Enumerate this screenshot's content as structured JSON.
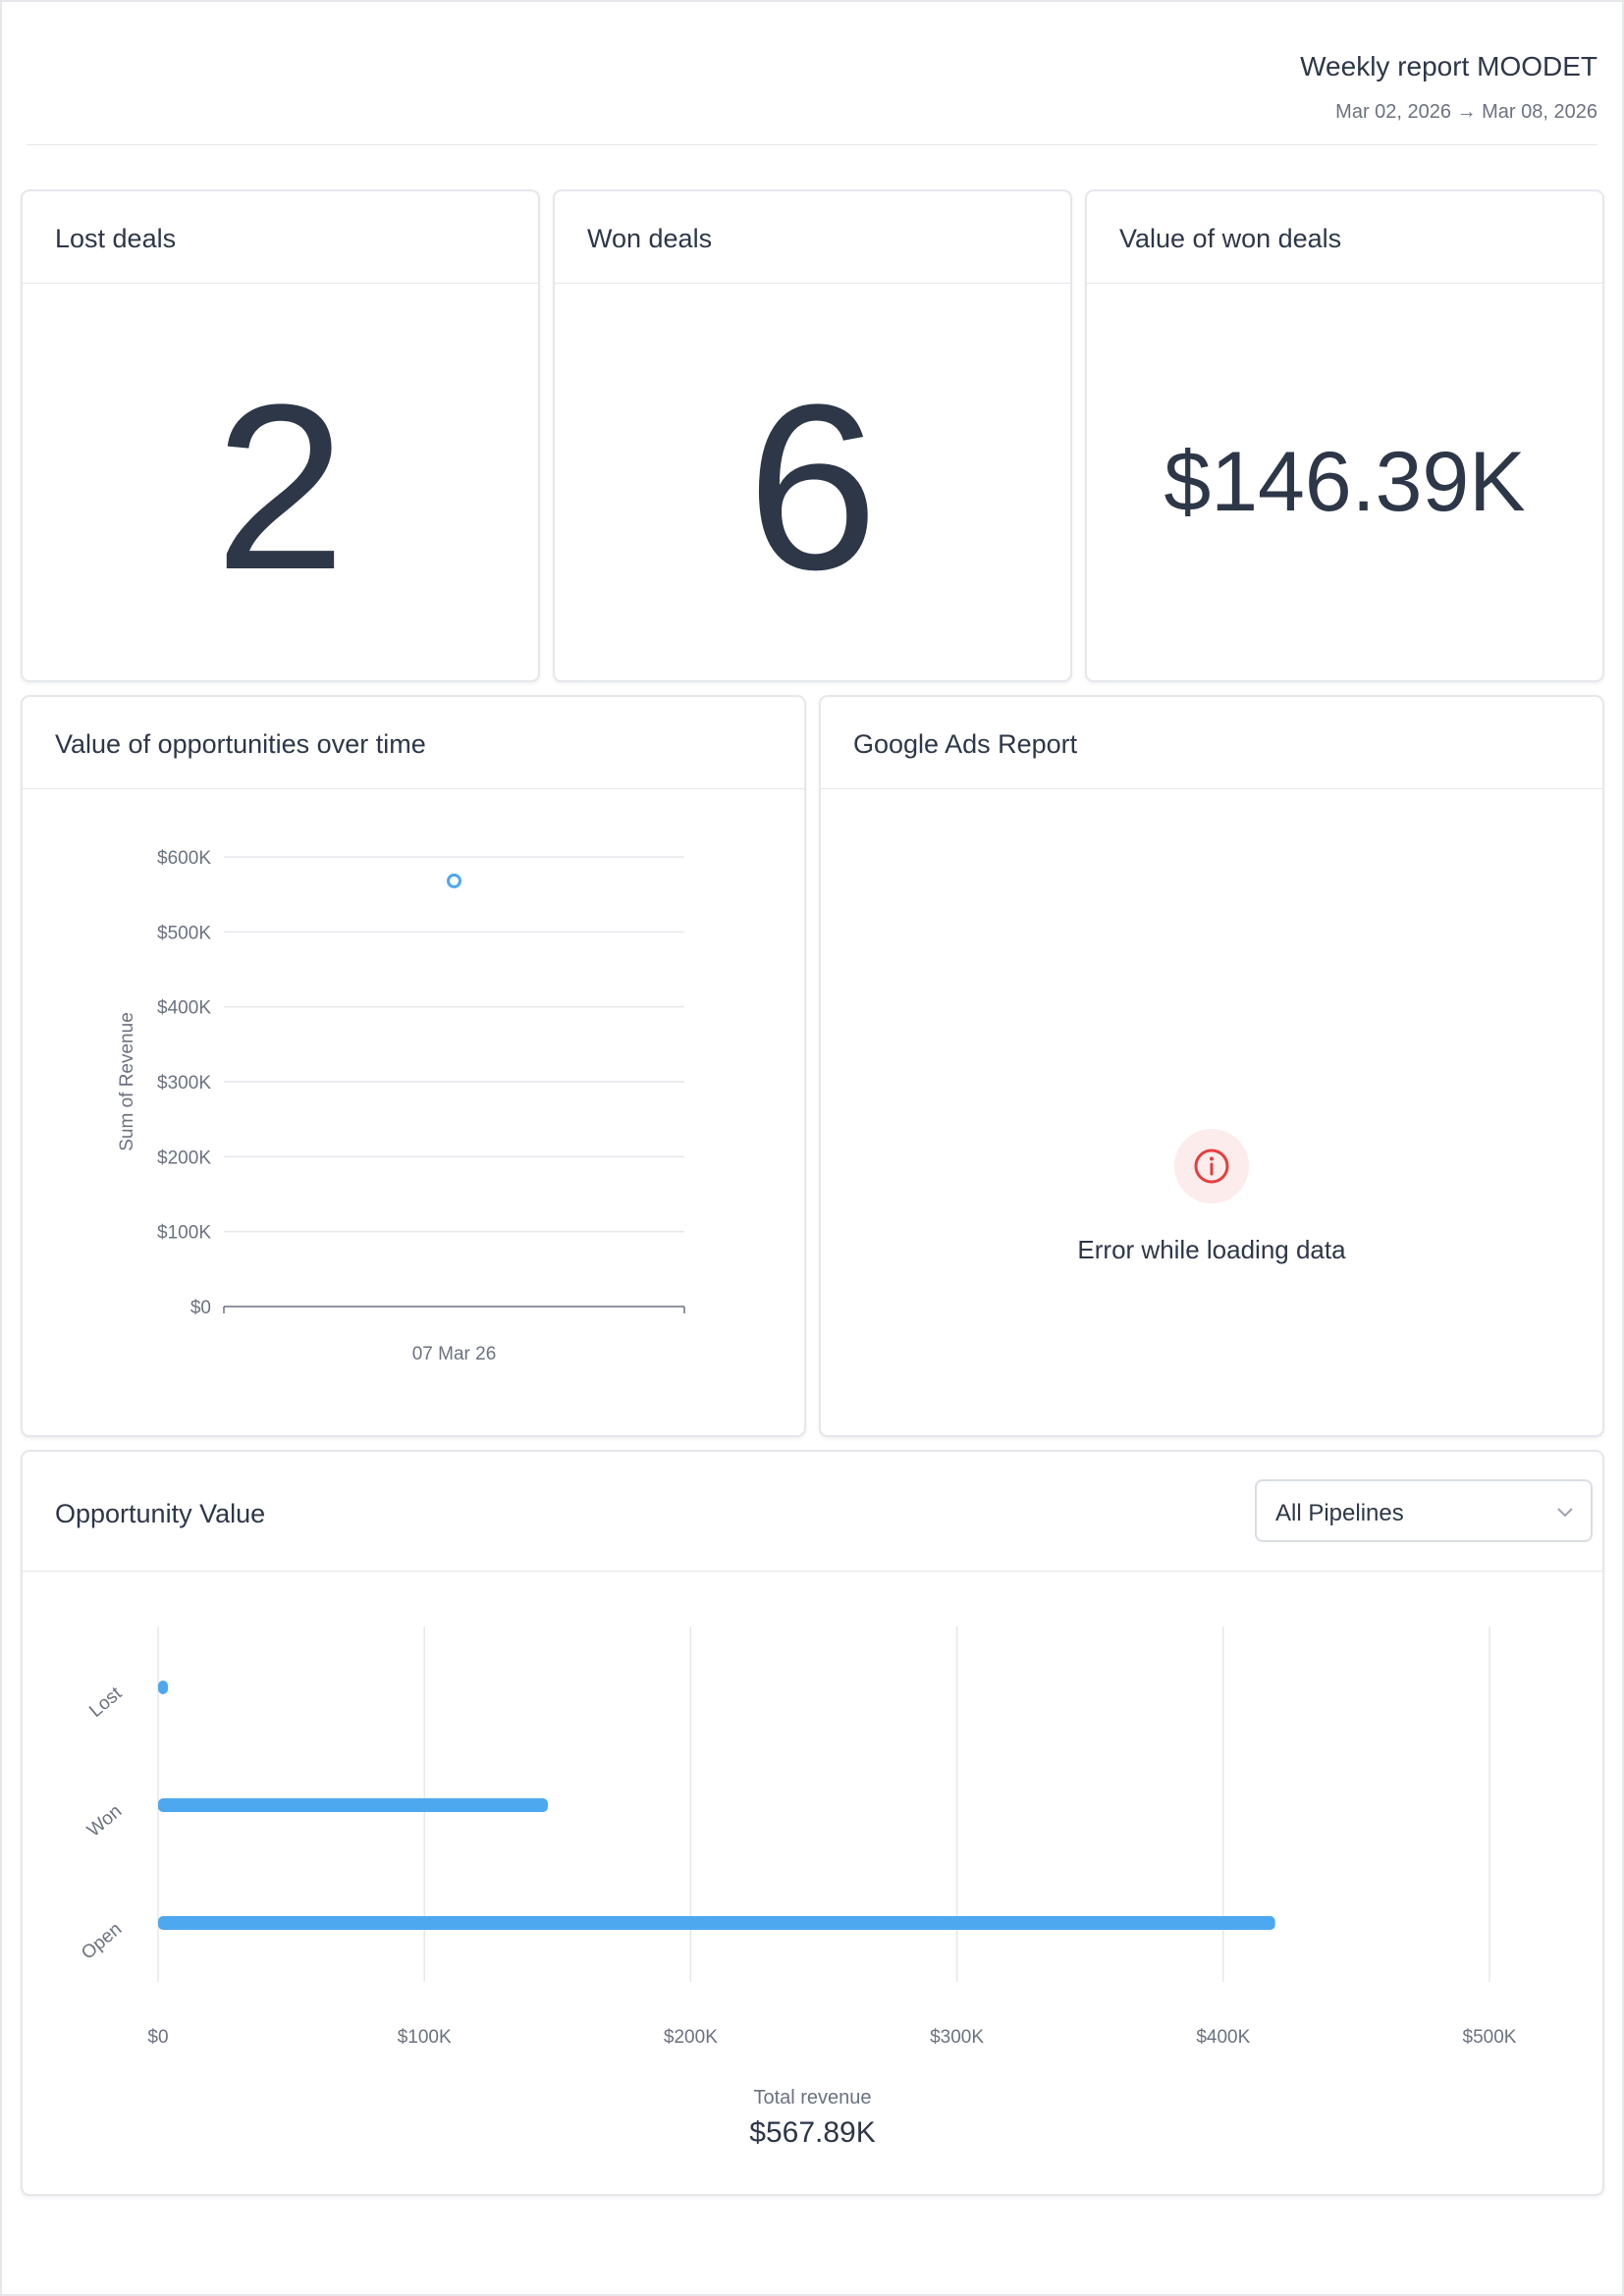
{
  "report": {
    "title": "Weekly report MOODET",
    "date_range": "Mar 02, 2026 → Mar 08, 2026"
  },
  "kpis": {
    "lost": {
      "title": "Lost deals",
      "value": "2"
    },
    "won": {
      "title": "Won deals",
      "value": "6"
    },
    "won_value": {
      "title": "Value of won deals",
      "value": "$146.39K"
    }
  },
  "opportunities_over_time": {
    "title": "Value of opportunities over time"
  },
  "google_ads": {
    "title": "Google Ads Report",
    "error_text": "Error while loading data",
    "icon": "info-icon",
    "error_color": "#e53e3e"
  },
  "opportunity_value": {
    "title": "Opportunity Value",
    "pipeline_select": {
      "value": "All Pipelines",
      "icon": "chevron-down-icon"
    },
    "total_label": "Total revenue",
    "total_value": "$567.89K"
  },
  "colors": {
    "accent": "#4da8f0",
    "text": "#2d3748",
    "muted": "#6b7280",
    "border": "#e5e7eb"
  },
  "chart_data": [
    {
      "type": "scatter",
      "title": "Value of opportunities over time",
      "xlabel": "",
      "ylabel": "Sum of Revenue",
      "x": [
        "07 Mar 26"
      ],
      "series": [
        {
          "values": [
            568000
          ]
        }
      ],
      "ylim": [
        0,
        600000
      ],
      "yticks": [
        0,
        100000,
        200000,
        300000,
        400000,
        500000,
        600000
      ],
      "ytick_labels": [
        "$0",
        "$100K",
        "$200K",
        "$300K",
        "$400K",
        "$500K",
        "$600K"
      ],
      "grid": true,
      "legend": "none"
    },
    {
      "type": "bar",
      "orientation": "horizontal",
      "title": "Opportunity Value",
      "categories": [
        "Lost",
        "Won",
        "Open"
      ],
      "values": [
        2000,
        146390,
        419500
      ],
      "xlim": [
        0,
        500000
      ],
      "xticks": [
        0,
        100000,
        200000,
        300000,
        400000,
        500000
      ],
      "xtick_labels": [
        "$0",
        "$100K",
        "$200K",
        "$300K",
        "$400K",
        "$500K"
      ],
      "grid": true,
      "legend": "none"
    }
  ]
}
